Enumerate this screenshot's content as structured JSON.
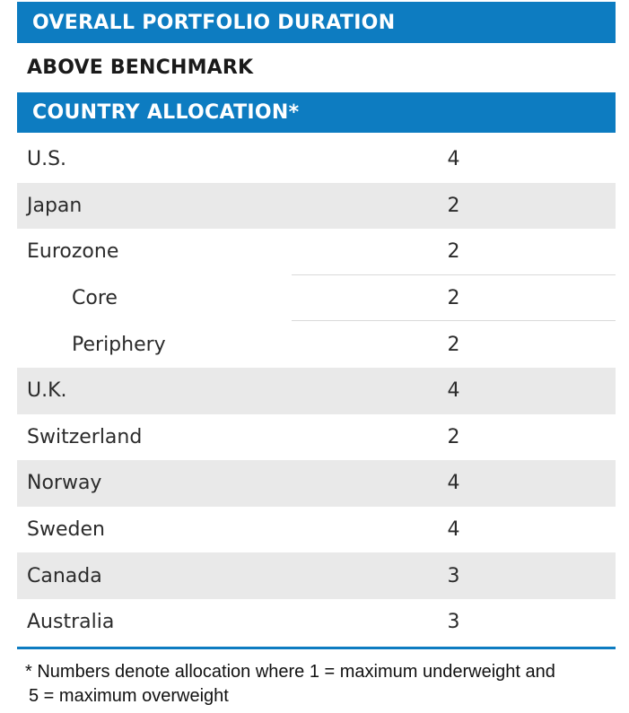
{
  "colors": {
    "accent_blue": "#0d7cc1",
    "row_shade": "#e9e9e9",
    "separator_gray": "#d9d9d9",
    "row_text": "#2b2b2b"
  },
  "duration_section": {
    "title": "OVERALL PORTFOLIO DURATION",
    "status": "ABOVE BENCHMARK"
  },
  "allocation_section": {
    "title": "COUNTRY ALLOCATION*",
    "rows": [
      {
        "label": "U.S.",
        "value": "4",
        "indent": false,
        "shaded": false,
        "separator_below": false
      },
      {
        "label": "Japan",
        "value": "2",
        "indent": false,
        "shaded": true,
        "separator_below": false
      },
      {
        "label": "Eurozone",
        "value": "2",
        "indent": false,
        "shaded": false,
        "separator_below": true
      },
      {
        "label": "Core",
        "value": "2",
        "indent": true,
        "shaded": false,
        "separator_below": true
      },
      {
        "label": "Periphery",
        "value": "2",
        "indent": true,
        "shaded": false,
        "separator_below": false
      },
      {
        "label": "U.K.",
        "value": "4",
        "indent": false,
        "shaded": true,
        "separator_below": false
      },
      {
        "label": "Switzerland",
        "value": "2",
        "indent": false,
        "shaded": false,
        "separator_below": false
      },
      {
        "label": "Norway",
        "value": "4",
        "indent": false,
        "shaded": true,
        "separator_below": false
      },
      {
        "label": "Sweden",
        "value": "4",
        "indent": false,
        "shaded": false,
        "separator_below": false
      },
      {
        "label": "Canada",
        "value": "3",
        "indent": false,
        "shaded": true,
        "separator_below": false
      },
      {
        "label": "Australia",
        "value": "3",
        "indent": false,
        "shaded": false,
        "separator_below": false
      }
    ]
  },
  "footnote": {
    "line1": "* Numbers denote allocation where 1 = maximum underweight and",
    "line2": "5 = maximum overweight"
  }
}
